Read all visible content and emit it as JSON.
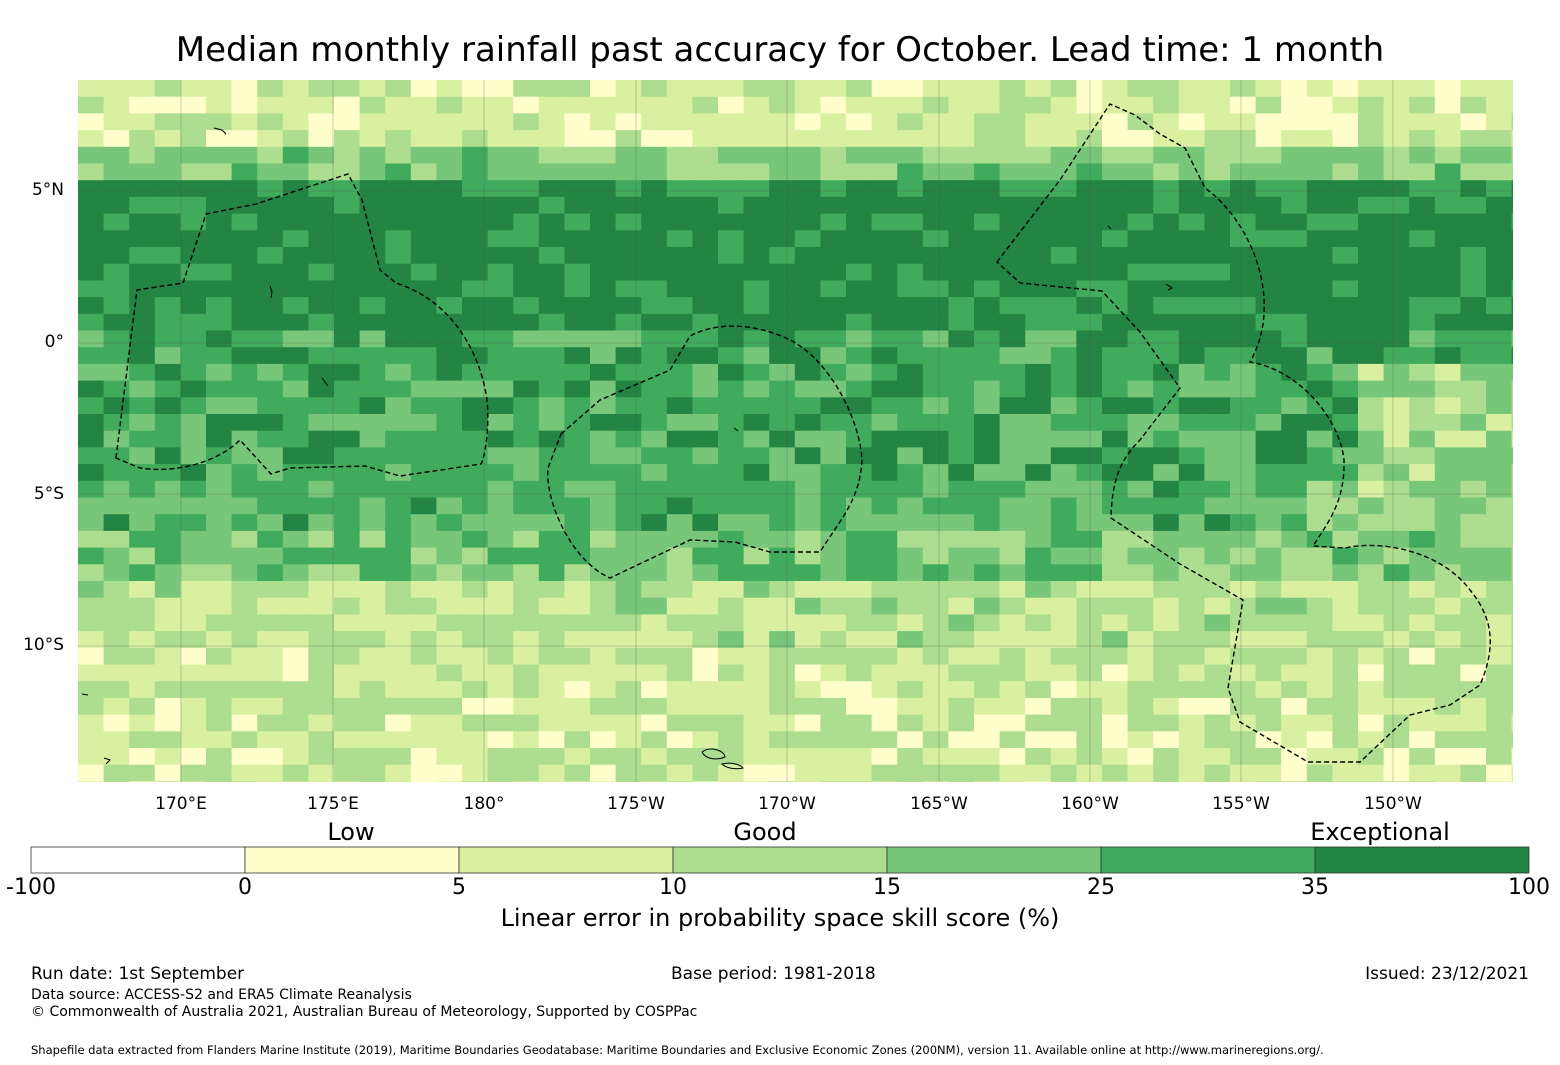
{
  "title": "Median monthly rainfall past accuracy for October. Lead time: 1 month",
  "map": {
    "latitude_labels": [
      "5°N",
      "0°",
      "5°S",
      "10°S"
    ],
    "longitude_labels": [
      "170°E",
      "175°E",
      "180°",
      "175°W",
      "170°W",
      "165°W",
      "160°W",
      "155°W",
      "150°W"
    ],
    "lat_range": [
      -14.5,
      8.7
    ],
    "lon_range": [
      166.5,
      213.8
    ],
    "grid_visible": true,
    "eez_boundaries": "dashed black lines",
    "coastlines": "thin black lines"
  },
  "colorbar": {
    "categories": [
      "Low",
      "Good",
      "Exceptional"
    ],
    "ticks": [
      "-100",
      "0",
      "5",
      "10",
      "15",
      "25",
      "35",
      "100"
    ],
    "colors": [
      "#ffffff",
      "#ffffcc",
      "#d9f0a3",
      "#addd8e",
      "#78c679",
      "#41ab5d",
      "#238443"
    ],
    "label": "Linear error in probability space skill score (%)"
  },
  "footer": {
    "run_date": "Run date: 1st September",
    "base_period": "Base period: 1981-2018",
    "issued": "Issued: 23/12/2021",
    "data_source": "Data source: ACCESS-S2 and ERA5 Climate Reanalysis",
    "copyright": "© Commonwealth of Australia 2021, Australian Bureau of Meteorology, Supported by COSPPac",
    "shapefile": "Shapefile data extracted from Flanders Marine Institute (2019), Maritime Boundaries Geodatabase: Maritime Boundaries and Exclusive Economic Zones (200NM), version 11. Available online at http://www.marineregions.org/."
  }
}
